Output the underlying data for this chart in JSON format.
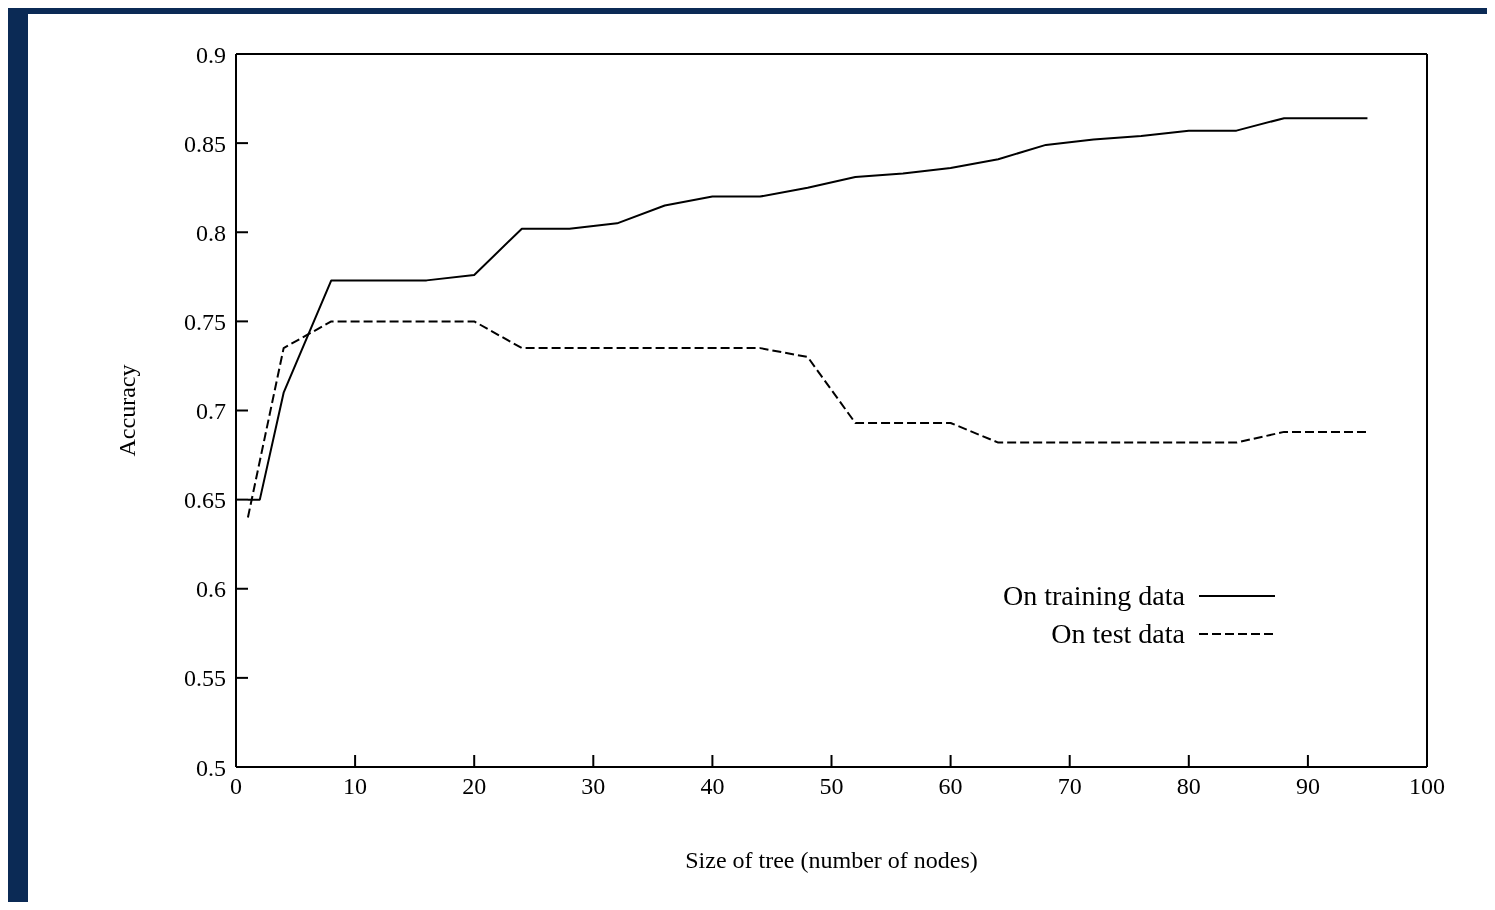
{
  "chart_data": {
    "type": "line",
    "xlabel": "Size of tree (number of nodes)",
    "ylabel": "Accuracy",
    "xlim": [
      0,
      100
    ],
    "xticks": [
      0,
      10,
      20,
      30,
      40,
      50,
      60,
      70,
      80,
      90,
      100
    ],
    "ylim": [
      0.5,
      0.9
    ],
    "yticks": [
      0.5,
      0.55,
      0.6,
      0.65,
      0.7,
      0.75,
      0.8,
      0.85,
      0.9
    ],
    "grid": false,
    "legend": "bottom right",
    "marker": "none",
    "series": [
      {
        "name": "On training data",
        "color": "#000000",
        "line_style": "solid",
        "x": [
          1,
          2,
          4,
          8,
          16,
          20,
          24,
          28,
          32,
          36,
          40,
          44,
          48,
          52,
          56,
          60,
          64,
          68,
          72,
          76,
          80,
          84,
          88,
          95
        ],
        "values": [
          0.65,
          0.65,
          0.71,
          0.773,
          0.773,
          0.776,
          0.802,
          0.802,
          0.805,
          0.815,
          0.82,
          0.82,
          0.825,
          0.831,
          0.833,
          0.836,
          0.841,
          0.849,
          0.852,
          0.854,
          0.857,
          0.857,
          0.864,
          0.864
        ]
      },
      {
        "name": "On test data",
        "color": "#000000",
        "line_style": "dashed",
        "x": [
          1,
          4,
          8,
          20,
          24,
          44,
          48,
          52,
          60,
          64,
          84,
          88,
          95
        ],
        "values": [
          0.64,
          0.735,
          0.75,
          0.75,
          0.735,
          0.735,
          0.73,
          0.693,
          0.693,
          0.682,
          0.682,
          0.688,
          0.688
        ]
      }
    ]
  }
}
